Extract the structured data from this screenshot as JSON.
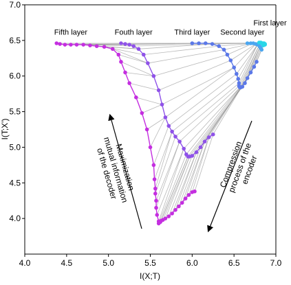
{
  "chart_data": {
    "type": "scatter",
    "title": "",
    "xlabel": "I(X;T)",
    "ylabel": "I(T;X')",
    "xlim": [
      4.0,
      7.0
    ],
    "ylim": [
      3.5,
      7.0
    ],
    "xticks": [
      "4.0",
      "4.5",
      "5.0",
      "5.5",
      "6.0",
      "6.5",
      "7.0"
    ],
    "yticks": [
      "4.0",
      "4.5",
      "5.0",
      "5.5",
      "6.0",
      "6.5",
      "7.0"
    ],
    "grid": false,
    "legend": "none",
    "layer_labels": [
      {
        "text": "Fifth layer",
        "x": 4.55,
        "y": 6.62
      },
      {
        "text": "Fouth layer",
        "x": 5.3,
        "y": 6.62
      },
      {
        "text": "Third layer",
        "x": 6.0,
        "y": 6.62
      },
      {
        "text": "Second layer",
        "x": 6.6,
        "y": 6.62
      },
      {
        "text": "First layer",
        "x": 6.93,
        "y": 6.75
      }
    ],
    "annotations": [
      {
        "id": "decoder",
        "lines": [
          "Maximization",
          "mutual information",
          "of the decoder"
        ]
      },
      {
        "id": "encoder",
        "lines": [
          "Compression",
          "process of the",
          "encoder"
        ]
      }
    ],
    "series": [
      {
        "name": "Fifth layer",
        "color": "#c42ee0",
        "x": [
          4.38,
          4.42,
          4.48,
          4.55,
          4.62,
          4.7,
          4.78,
          4.86,
          4.95,
          5.05,
          5.12,
          5.15,
          5.2,
          5.25,
          5.33,
          5.4,
          5.46,
          5.5,
          5.54,
          5.55,
          5.56,
          5.56,
          5.57,
          5.57,
          5.58,
          5.6,
          5.6,
          5.62,
          5.63,
          5.65,
          5.68,
          5.72,
          5.76,
          5.8,
          5.84,
          5.88,
          5.92,
          5.96,
          6.0,
          6.03
        ],
        "y": [
          6.46,
          6.45,
          6.44,
          6.44,
          6.44,
          6.44,
          6.43,
          6.42,
          6.41,
          6.38,
          6.3,
          6.2,
          6.05,
          5.9,
          5.7,
          5.48,
          5.25,
          5.0,
          4.75,
          4.55,
          4.42,
          4.35,
          4.25,
          4.15,
          4.05,
          3.96,
          3.93,
          3.95,
          3.97,
          3.98,
          4.0,
          4.03,
          4.07,
          4.12,
          4.17,
          4.22,
          4.28,
          4.33,
          4.37,
          4.38
        ]
      },
      {
        "name": "Fouth layer",
        "color": "#8f52e8",
        "x": [
          5.15,
          5.2,
          5.25,
          5.3,
          5.36,
          5.42,
          5.47,
          5.54,
          5.6,
          5.64,
          5.68,
          5.72,
          5.76,
          5.8,
          5.85,
          5.9,
          5.93,
          5.95,
          5.97,
          6.0,
          6.05,
          6.1,
          6.15,
          6.2,
          6.25
        ],
        "y": [
          6.46,
          6.45,
          6.44,
          6.42,
          6.38,
          6.3,
          6.18,
          6.0,
          5.8,
          5.6,
          5.42,
          5.3,
          5.22,
          5.15,
          5.08,
          4.98,
          4.9,
          4.87,
          4.87,
          4.88,
          4.93,
          5.0,
          5.08,
          5.14,
          5.18
        ]
      },
      {
        "name": "Third layer",
        "color": "#5b78e8",
        "x": [
          6.0,
          6.08,
          6.16,
          6.24,
          6.32,
          6.38,
          6.42,
          6.46,
          6.5,
          6.53,
          6.55,
          6.56,
          6.56,
          6.57,
          6.58,
          6.6,
          6.63,
          6.66,
          6.7,
          6.74,
          6.77
        ],
        "y": [
          6.46,
          6.46,
          6.46,
          6.45,
          6.42,
          6.37,
          6.3,
          6.22,
          6.12,
          6.03,
          5.96,
          5.9,
          5.86,
          5.84,
          5.84,
          5.85,
          5.9,
          5.97,
          6.05,
          6.13,
          6.2
        ]
      },
      {
        "name": "Second layer",
        "color": "#4aa6f0",
        "x": [
          6.66,
          6.7,
          6.73,
          6.76,
          6.78,
          6.8,
          6.81,
          6.82,
          6.83
        ],
        "y": [
          6.46,
          6.46,
          6.46,
          6.45,
          6.44,
          6.43,
          6.41,
          6.39,
          6.37
        ]
      },
      {
        "name": "First layer",
        "color": "#29d6e8",
        "x": [
          6.8,
          6.82,
          6.83,
          6.84,
          6.85,
          6.86,
          6.86,
          6.87,
          6.87,
          6.85
        ],
        "y": [
          6.47,
          6.47,
          6.46,
          6.46,
          6.46,
          6.46,
          6.45,
          6.45,
          6.44,
          6.43
        ]
      }
    ]
  }
}
